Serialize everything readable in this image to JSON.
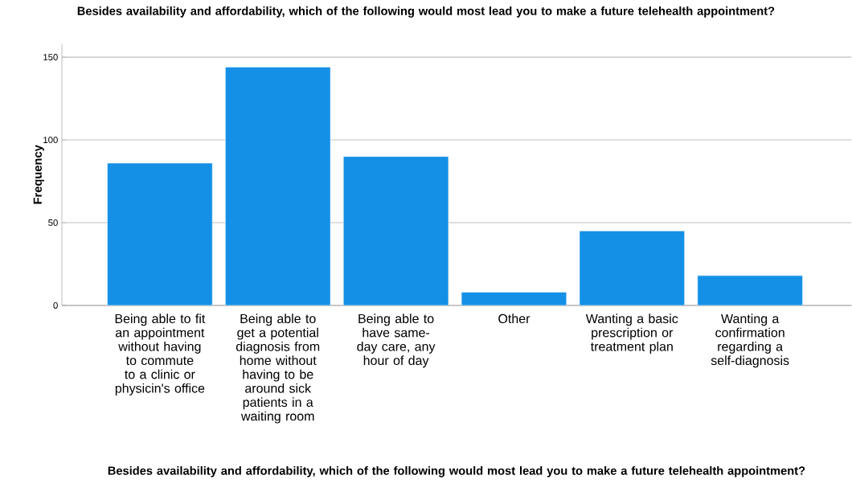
{
  "chart_data": {
    "type": "bar",
    "title": "Besides availability and affordability, which of the following would most lead you to make a future telehealth appointment?",
    "xlabel": "Besides availability and affordability, which of the following would most lead you to make a future telehealth appointment?",
    "ylabel": "Frequency",
    "categories": [
      "Being able to fit an appointment without having to commute to a clinic or physicin's office",
      "Being able to get a potential diagnosis from home without having to be around sick patients in a waiting room",
      "Being able to have same-day care, any hour of day",
      "Other",
      "Wanting a basic prescription or treatment plan",
      "Wanting a confirmation regarding a self-diagnosis"
    ],
    "values": [
      86,
      144,
      90,
      8,
      45,
      18
    ],
    "color": "#1490e6",
    "ylim": [
      0,
      158
    ],
    "yticks": [
      0,
      50,
      100,
      150
    ],
    "grid": "y"
  }
}
